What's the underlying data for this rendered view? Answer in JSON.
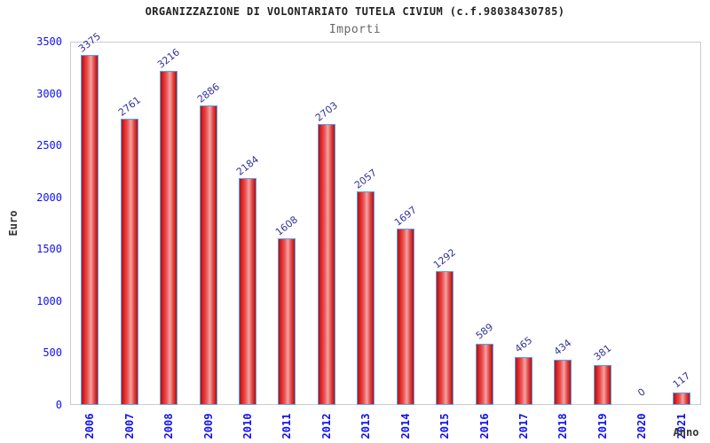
{
  "chart_data": {
    "type": "bar",
    "title": "ORGANIZZAZIONE DI VOLONTARIATO TUTELA CIVIUM (c.f.98038430785)",
    "subtitle": "Importi",
    "xlabel": "Anno",
    "ylabel": "Euro",
    "categories": [
      "2006",
      "2007",
      "2008",
      "2009",
      "2010",
      "2011",
      "2012",
      "2013",
      "2014",
      "2015",
      "2016",
      "2017",
      "2018",
      "2019",
      "2020",
      "2021"
    ],
    "values": [
      3375,
      2761,
      3216,
      2886,
      2184,
      1608,
      2703,
      2057,
      1697,
      1292,
      589,
      465,
      434,
      381,
      0,
      117
    ],
    "ylim": [
      0,
      3500
    ],
    "ytick_step": 500,
    "ytick_labels": [
      "0",
      "500",
      "1000",
      "1500",
      "2000",
      "2500",
      "3000",
      "3500"
    ],
    "legend": "none",
    "grid": "horizontal alternating bands every 500",
    "colors": {
      "bar_fill": "#e03030",
      "bar_border": "#58a0e8",
      "tick_label": "#1111ee",
      "value_label": "#333399",
      "band_gray": "#f2f2f2",
      "band_white": "#ffffff",
      "plot_border": "#cccccc",
      "title": "#222222",
      "subtitle": "#666666",
      "axis_title": "#333333"
    }
  }
}
